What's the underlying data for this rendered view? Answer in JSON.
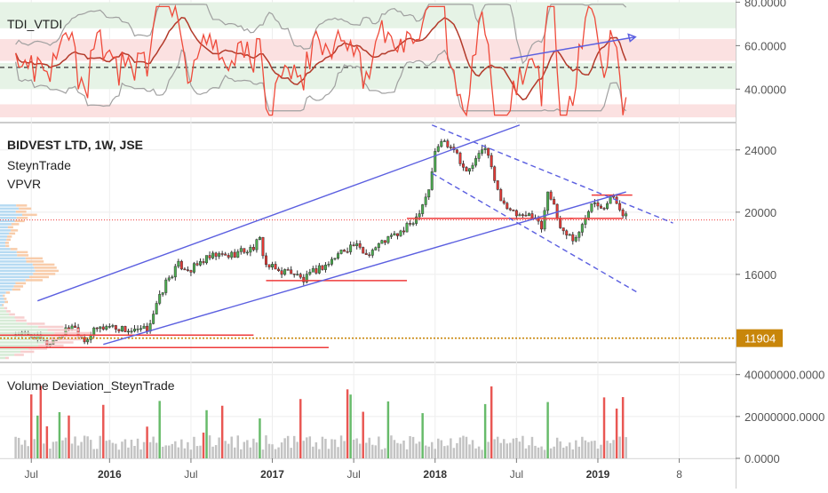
{
  "colors": {
    "up": "#4caf50",
    "down": "#e53935",
    "channel": "#5b5fe0",
    "hline": "#ef3b3b",
    "marker": "#c8860a",
    "vwhite": "#ffffff",
    "grid": "#eeeeee"
  },
  "panes": {
    "tdi": {
      "title": "TDI_VTDI",
      "axis_ticks": [
        {
          "v": 80,
          "label": "80.0000"
        },
        {
          "v": 60,
          "label": "60.0000"
        },
        {
          "v": 40,
          "label": "40.0000"
        }
      ]
    },
    "price": {
      "title": "BIDVEST LTD, 1W, JSE",
      "line2": "SteynTrade",
      "line3": "VPVR",
      "axis_ticks": [
        {
          "v": 24000,
          "label": "24000"
        },
        {
          "v": 20000,
          "label": "20000"
        },
        {
          "v": 16000,
          "label": "16000"
        }
      ],
      "marker": {
        "v": 11904,
        "label": "11904"
      }
    },
    "volume": {
      "title": "Volume Deviation_SteynTrade",
      "axis_ticks": [
        {
          "v": 40000000,
          "label": "40000000.0000"
        },
        {
          "v": 20000000,
          "label": "20000000.0000"
        },
        {
          "v": 0,
          "label": "0.0000"
        }
      ]
    }
  },
  "x_axis": {
    "ticks": [
      {
        "t": 5,
        "label": "Jul",
        "bold": false
      },
      {
        "t": 30,
        "label": "2016",
        "bold": true
      },
      {
        "t": 56,
        "label": "Jul",
        "bold": false
      },
      {
        "t": 82,
        "label": "2017",
        "bold": true
      },
      {
        "t": 108,
        "label": "Jul",
        "bold": false
      },
      {
        "t": 134,
        "label": "2018",
        "bold": true
      },
      {
        "t": 160,
        "label": "Jul",
        "bold": false
      },
      {
        "t": 186,
        "label": "2019",
        "bold": true
      },
      {
        "t": 212,
        "label": "8",
        "bold": false
      }
    ]
  },
  "chart_data": {
    "type": "candlestick",
    "title": "BIDVEST LTD, 1W, JSE",
    "x_unit": "weeks",
    "x_range": [
      -5,
      230
    ],
    "price_ylim": [
      10400,
      25700
    ],
    "tdi_ylim": [
      25,
      81
    ],
    "volume_ylim": [
      0,
      42000000
    ],
    "anchors": [
      [
        0,
        12200
      ],
      [
        6,
        12000
      ],
      [
        10,
        11500
      ],
      [
        14,
        12000
      ],
      [
        18,
        12800
      ],
      [
        22,
        11800
      ],
      [
        26,
        12500
      ],
      [
        30,
        12700
      ],
      [
        34,
        12500
      ],
      [
        38,
        12300
      ],
      [
        42,
        12500
      ],
      [
        45,
        14000
      ],
      [
        48,
        15500
      ],
      [
        52,
        16600
      ],
      [
        56,
        16300
      ],
      [
        60,
        16900
      ],
      [
        64,
        17200
      ],
      [
        68,
        17200
      ],
      [
        72,
        17500
      ],
      [
        75,
        17600
      ],
      [
        78,
        18200
      ],
      [
        80,
        16600
      ],
      [
        84,
        16200
      ],
      [
        88,
        16200
      ],
      [
        92,
        15600
      ],
      [
        96,
        16300
      ],
      [
        100,
        16700
      ],
      [
        104,
        17500
      ],
      [
        108,
        17900
      ],
      [
        112,
        17300
      ],
      [
        118,
        18200
      ],
      [
        124,
        18800
      ],
      [
        128,
        19700
      ],
      [
        132,
        21500
      ],
      [
        134,
        23800
      ],
      [
        136,
        24600
      ],
      [
        140,
        24200
      ],
      [
        144,
        22500
      ],
      [
        148,
        23600
      ],
      [
        150,
        24300
      ],
      [
        154,
        21300
      ],
      [
        158,
        20000
      ],
      [
        162,
        19600
      ],
      [
        165,
        19900
      ],
      [
        168,
        19000
      ],
      [
        170,
        21500
      ],
      [
        174,
        19000
      ],
      [
        178,
        18300
      ],
      [
        180,
        18600
      ],
      [
        184,
        20800
      ],
      [
        188,
        20400
      ],
      [
        190,
        21000
      ],
      [
        192,
        20600
      ],
      [
        195,
        19700
      ]
    ],
    "channel_lines": [
      {
        "name": "",
        "points": [
          [
            7,
            14300
          ],
          [
            161,
            25600
          ]
        ],
        "style": "solid"
      },
      {
        "name": "",
        "points": [
          [
            28,
            11500
          ],
          [
            195,
            21300
          ]
        ],
        "style": "solid"
      },
      {
        "name": "",
        "points": [
          [
            133,
            25600
          ],
          [
            210,
            19300
          ]
        ],
        "style": "dashed"
      },
      {
        "name": "",
        "points": [
          [
            133,
            22500
          ],
          [
            199,
            14800
          ]
        ],
        "style": "dashed"
      }
    ],
    "horizontal_levels": [
      {
        "price": 11300,
        "t0": -5,
        "t1": 100
      },
      {
        "price": 12100,
        "t0": -5,
        "t1": 76
      },
      {
        "price": 15600,
        "t0": 80,
        "t1": 125
      },
      {
        "price": 19600,
        "t0": 125,
        "t1": 178
      },
      {
        "price": 19600,
        "t0": 177,
        "t1": 194
      },
      {
        "price": 21100,
        "t0": 184,
        "t1": 197
      }
    ],
    "dotted_level": {
      "price": 19500
    },
    "tdi": {
      "bands_green": [
        [
          68,
          80
        ],
        [
          40,
          52
        ]
      ],
      "bands_red": [
        [
          53,
          63
        ],
        [
          27,
          33
        ]
      ],
      "dashed_level": 50,
      "market_baseline_value": 50,
      "arrow": {
        "from": [
          158,
          54
        ],
        "to": [
          198,
          64
        ]
      }
    }
  }
}
